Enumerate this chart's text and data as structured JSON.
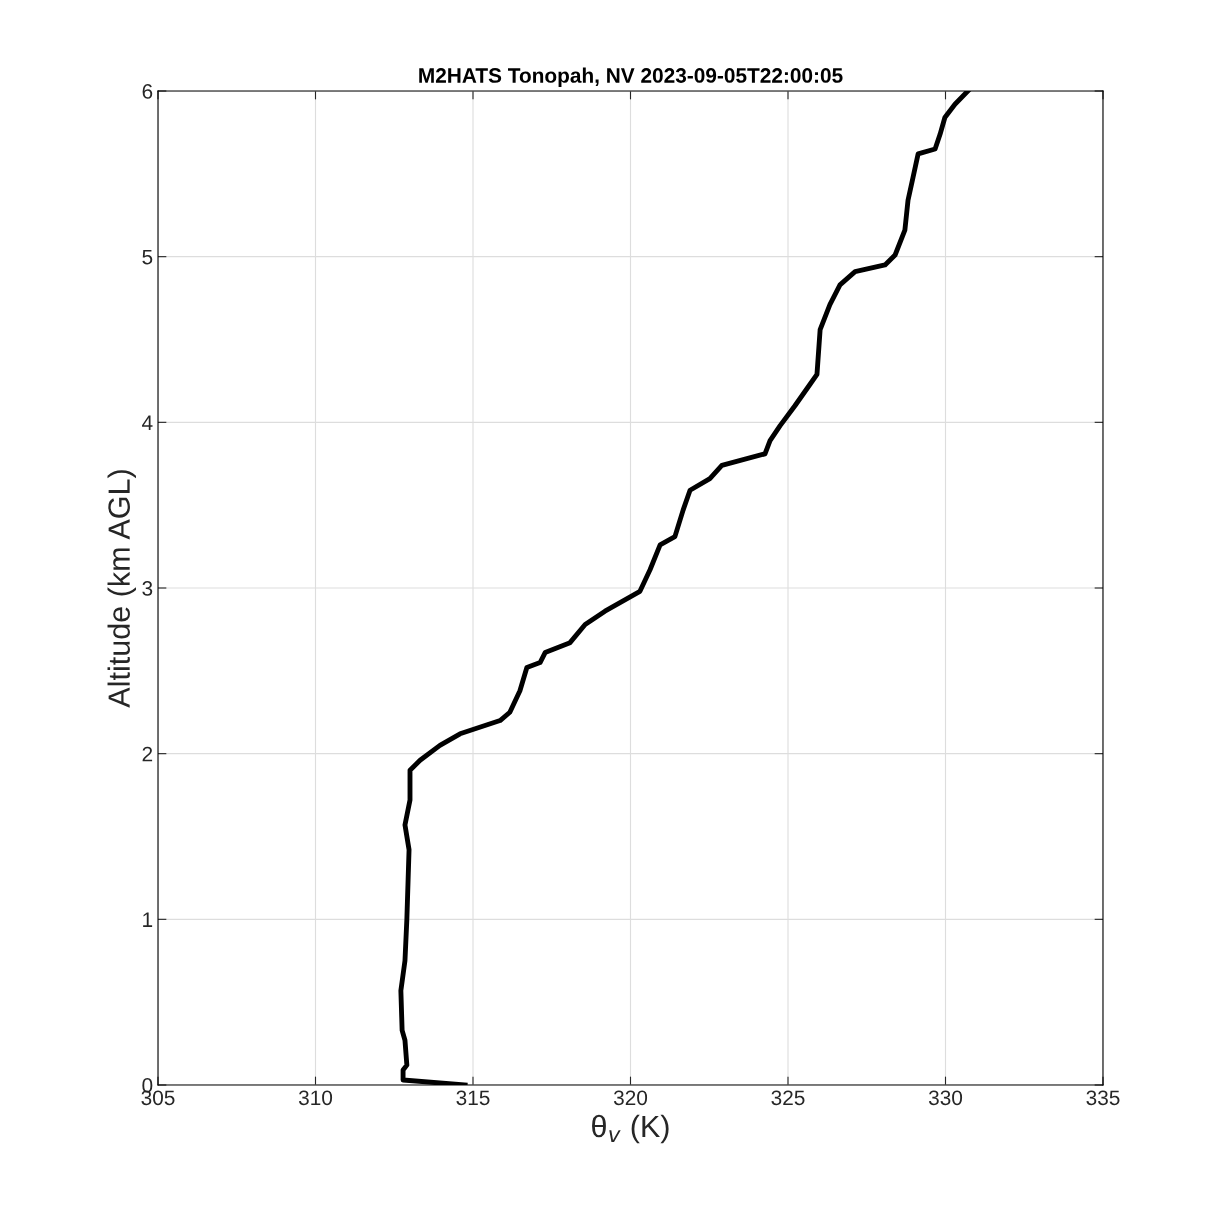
{
  "chart_data": {
    "type": "line",
    "title": "M2HATS Tonopah, NV 2023-09-05T22:00:05",
    "xlabel": "θ$_{v}$ (K)",
    "ylabel": "Altitude (km AGL)",
    "xlim": [
      305,
      335
    ],
    "xticks": [
      305,
      310,
      315,
      320,
      325,
      330,
      335
    ],
    "ylim": [
      0,
      6
    ],
    "yticks": [
      0,
      1,
      2,
      3,
      4,
      5,
      6
    ],
    "grid": true,
    "legend": false,
    "marker": "none",
    "line_style": "solid",
    "series": [
      {
        "color": "#000000",
        "x": [
          314.75,
          312.78,
          312.78,
          312.9,
          312.84,
          312.75,
          312.71,
          312.84,
          312.9,
          312.94,
          312.97,
          312.84,
          313.0,
          313.0,
          313.32,
          313.95,
          314.59,
          315.86,
          316.17,
          316.49,
          316.71,
          317.13,
          317.29,
          318.08,
          318.56,
          319.19,
          320.3,
          320.62,
          320.94,
          321.41,
          321.67,
          321.89,
          322.52,
          322.9,
          324.27,
          324.43,
          324.75,
          325.22,
          325.7,
          325.92,
          326.02,
          326.33,
          326.65,
          327.13,
          328.08,
          328.4,
          328.71,
          328.81,
          328.97,
          329.13,
          329.67,
          329.83,
          329.98,
          330.3,
          330.71
        ],
        "values": [
          0,
          0.03,
          0.09,
          0.12,
          0.27,
          0.33,
          0.57,
          0.75,
          1.0,
          1.24,
          1.42,
          1.57,
          1.72,
          1.9,
          1.96,
          2.05,
          2.12,
          2.2,
          2.25,
          2.38,
          2.52,
          2.55,
          2.61,
          2.67,
          2.78,
          2.86,
          2.98,
          3.11,
          3.26,
          3.31,
          3.47,
          3.59,
          3.66,
          3.74,
          3.81,
          3.89,
          3.98,
          4.1,
          4.23,
          4.29,
          4.56,
          4.71,
          4.83,
          4.91,
          4.95,
          5.01,
          5.16,
          5.34,
          5.48,
          5.62,
          5.65,
          5.74,
          5.84,
          5.92,
          6.0
        ]
      }
    ]
  }
}
